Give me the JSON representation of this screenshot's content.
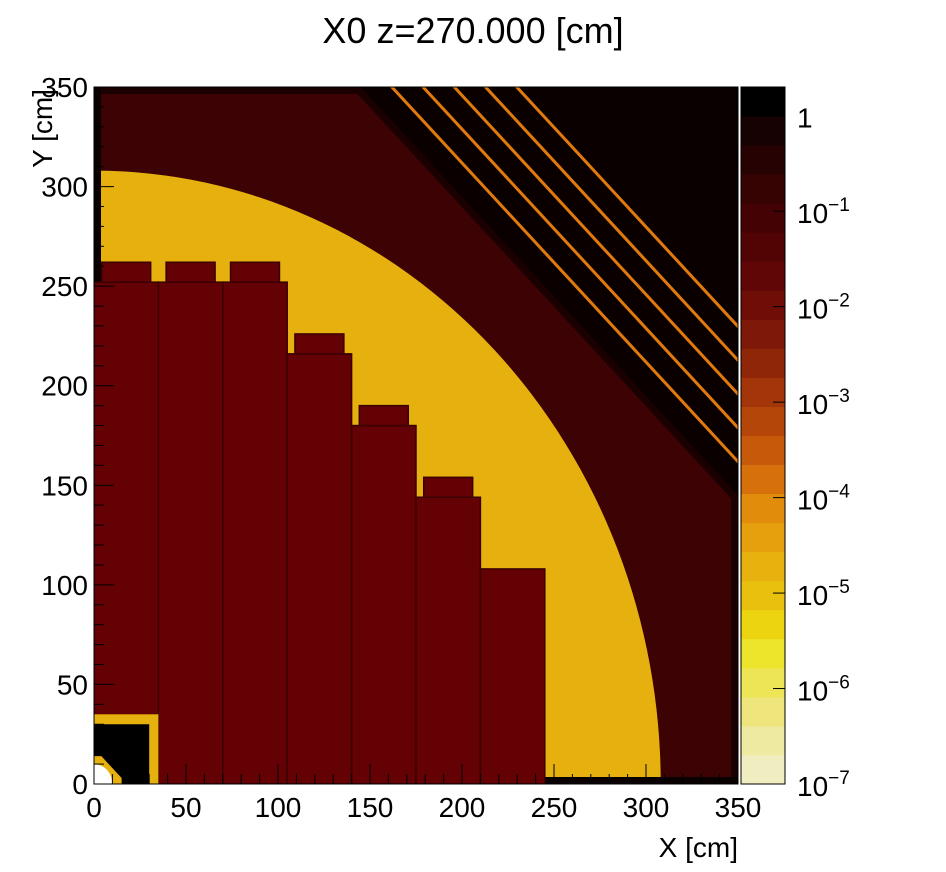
{
  "chart_data": {
    "type": "heatmap",
    "title": "X0 z=270.000 [cm]",
    "xlabel": "X [cm]",
    "ylabel": "Y [cm]",
    "xlim": [
      0,
      350
    ],
    "ylim": [
      0,
      350
    ],
    "x_ticks": [
      "0",
      "50",
      "100",
      "150",
      "200",
      "250",
      "300",
      "350"
    ],
    "y_ticks": [
      "0",
      "50",
      "100",
      "150",
      "200",
      "250",
      "300",
      "350"
    ],
    "grid": false,
    "colorbar": {
      "scale": "log",
      "range": [
        1e-07,
        2
      ],
      "tick_labels": [
        {
          "base": "1",
          "exp": ""
        },
        {
          "base": "10",
          "exp": "−1"
        },
        {
          "base": "10",
          "exp": "−2"
        },
        {
          "base": "10",
          "exp": "−3"
        },
        {
          "base": "10",
          "exp": "−4"
        },
        {
          "base": "10",
          "exp": "−5"
        },
        {
          "base": "10",
          "exp": "−6"
        },
        {
          "base": "10",
          "exp": "−7"
        }
      ],
      "palette": [
        "#f0eec0",
        "#efeaa2",
        "#eee67c",
        "#ede456",
        "#ece52c",
        "#ecd410",
        "#e9c00e",
        "#e8b20e",
        "#e6a00e",
        "#e28c0c",
        "#d6700a",
        "#c65a0a",
        "#b4460a",
        "#a2360a",
        "#902608",
        "#7e1808",
        "#6e0e06",
        "#600606",
        "#520404",
        "#440204",
        "#360202",
        "#260202",
        "#160202",
        "#000000"
      ]
    },
    "colors": {
      "background": "#e6b10e",
      "barrel_modules": "#630104",
      "outer_ring": "#3d0203",
      "beam_pipe": "#000000"
    },
    "regions": {
      "outer_ring_radii_cm": [
        308,
        388
      ],
      "corner_band_start_cm": 350,
      "barrel_modules": [
        {
          "x0": 0,
          "x1": 35,
          "y_top": 252,
          "cap_top": 262
        },
        {
          "x0": 35,
          "x1": 70,
          "y_top": 252,
          "cap_top": 262
        },
        {
          "x0": 70,
          "x1": 105,
          "y_top": 252,
          "cap_top": 262
        },
        {
          "x0": 105,
          "x1": 140,
          "y_top": 216,
          "cap_top": 226
        },
        {
          "x0": 140,
          "x1": 175,
          "y_top": 180,
          "cap_top": 190
        },
        {
          "x0": 175,
          "x1": 210,
          "y_top": 144,
          "cap_top": 154
        },
        {
          "x0": 210,
          "x1": 245,
          "y_top": 108,
          "cap_top": 108
        }
      ],
      "beam_pipe_box_cm": 35,
      "beam_pipe_inner_cm": 30
    }
  }
}
